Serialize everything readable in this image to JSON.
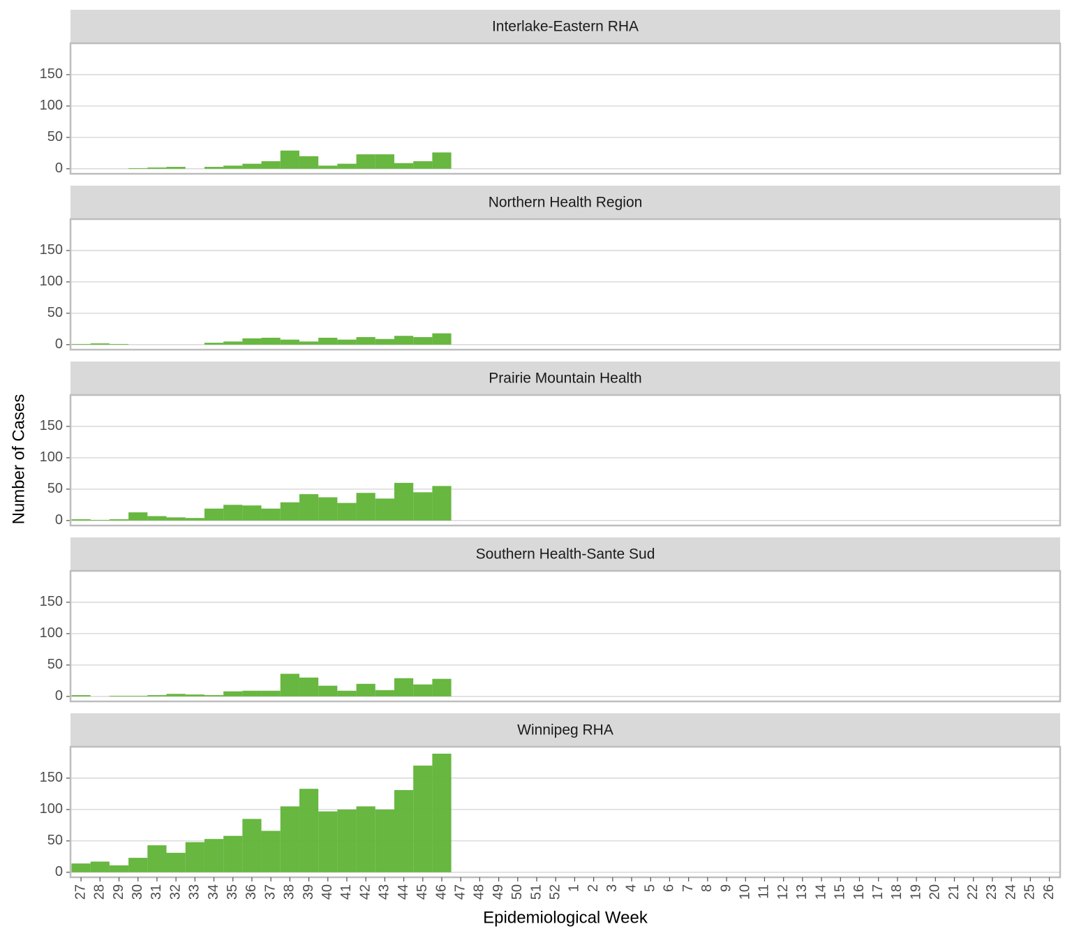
{
  "x_label": "Epidemiological Week",
  "y_label": "Number of Cases",
  "categories": [
    "27",
    "28",
    "29",
    "30",
    "31",
    "32",
    "33",
    "34",
    "35",
    "36",
    "37",
    "38",
    "39",
    "40",
    "41",
    "42",
    "43",
    "44",
    "45",
    "46",
    "47",
    "48",
    "49",
    "50",
    "51",
    "52",
    "1",
    "2",
    "3",
    "4",
    "5",
    "6",
    "7",
    "8",
    "9",
    "10",
    "11",
    "12",
    "13",
    "14",
    "15",
    "16",
    "17",
    "18",
    "19",
    "20",
    "21",
    "22",
    "23",
    "24",
    "25",
    "26"
  ],
  "chart_data": [
    {
      "type": "bar",
      "title": "Interlake-Eastern RHA",
      "color": "#5fb336",
      "ylim": [
        -8,
        200
      ],
      "yticks": [
        0,
        50,
        100,
        150
      ],
      "grid": true,
      "values": [
        0,
        0,
        0,
        1,
        2,
        3,
        0,
        3,
        5,
        8,
        12,
        29,
        20,
        5,
        8,
        23,
        23,
        9,
        12,
        26,
        null,
        null,
        null,
        null,
        null,
        null,
        null,
        null,
        null,
        null,
        null,
        null,
        null,
        null,
        null,
        null,
        null,
        null,
        null,
        null,
        null,
        null,
        null,
        null,
        null,
        null,
        null,
        null,
        null,
        null,
        null,
        null
      ]
    },
    {
      "type": "bar",
      "title": "Northern Health Region",
      "color": "#5fb336",
      "ylim": [
        -8,
        200
      ],
      "yticks": [
        0,
        50,
        100,
        150
      ],
      "grid": true,
      "values": [
        1,
        2,
        1,
        0,
        0,
        0,
        0,
        3,
        5,
        10,
        11,
        8,
        5,
        11,
        8,
        12,
        9,
        14,
        12,
        18,
        null,
        null,
        null,
        null,
        null,
        null,
        null,
        null,
        null,
        null,
        null,
        null,
        null,
        null,
        null,
        null,
        null,
        null,
        null,
        null,
        null,
        null,
        null,
        null,
        null,
        null,
        null,
        null,
        null,
        null,
        null,
        null
      ]
    },
    {
      "type": "bar",
      "title": "Prairie Mountain Health",
      "color": "#5fb336",
      "ylim": [
        -8,
        200
      ],
      "yticks": [
        0,
        50,
        100,
        150
      ],
      "grid": true,
      "values": [
        2,
        1,
        2,
        13,
        7,
        5,
        4,
        19,
        25,
        24,
        19,
        29,
        42,
        37,
        28,
        44,
        35,
        60,
        45,
        55,
        null,
        null,
        null,
        null,
        null,
        null,
        null,
        null,
        null,
        null,
        null,
        null,
        null,
        null,
        null,
        null,
        null,
        null,
        null,
        null,
        null,
        null,
        null,
        null,
        null,
        null,
        null,
        null,
        null,
        null,
        null,
        null
      ]
    },
    {
      "type": "bar",
      "title": "Southern Health-Sante Sud",
      "color": "#5fb336",
      "ylim": [
        -8,
        200
      ],
      "yticks": [
        0,
        50,
        100,
        150
      ],
      "grid": true,
      "values": [
        2,
        0,
        1,
        1,
        2,
        4,
        3,
        2,
        8,
        9,
        9,
        36,
        30,
        17,
        9,
        20,
        10,
        29,
        19,
        28,
        null,
        null,
        null,
        null,
        null,
        null,
        null,
        null,
        null,
        null,
        null,
        null,
        null,
        null,
        null,
        null,
        null,
        null,
        null,
        null,
        null,
        null,
        null,
        null,
        null,
        null,
        null,
        null,
        null,
        null,
        null,
        null
      ]
    },
    {
      "type": "bar",
      "title": "Winnipeg RHA",
      "color": "#5fb336",
      "ylim": [
        -8,
        200
      ],
      "yticks": [
        0,
        50,
        100,
        150
      ],
      "grid": true,
      "values": [
        14,
        17,
        11,
        23,
        43,
        31,
        48,
        53,
        58,
        85,
        66,
        105,
        133,
        97,
        100,
        105,
        100,
        131,
        170,
        189,
        null,
        null,
        null,
        null,
        null,
        null,
        null,
        null,
        null,
        null,
        null,
        null,
        null,
        null,
        null,
        null,
        null,
        null,
        null,
        null,
        null,
        null,
        null,
        null,
        null,
        null,
        null,
        null,
        null,
        null,
        null,
        null
      ]
    }
  ]
}
